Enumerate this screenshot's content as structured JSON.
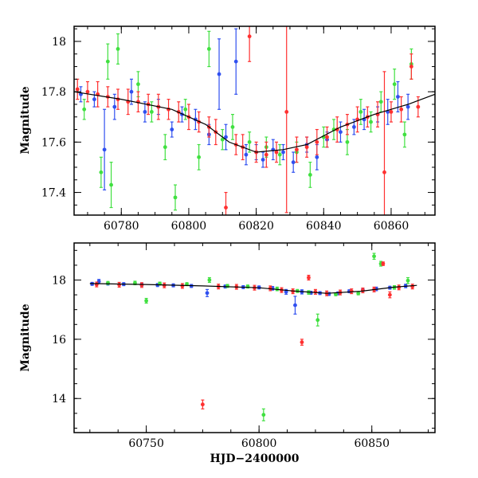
{
  "chart_data": [
    {
      "type": "scatter",
      "title": "",
      "xlabel": "",
      "ylabel": "Magnitude",
      "xlim": [
        60766,
        60873
      ],
      "ylim": [
        18.06,
        17.31
      ],
      "y_inverted": true,
      "grid": false,
      "x_ticks": [
        60780,
        60800,
        60820,
        60840,
        60860
      ],
      "x_tick_labels": [
        "60780",
        "60800",
        "60820",
        "60840",
        "60860"
      ],
      "y_ticks": [
        17.4,
        17.6,
        17.8,
        18.0
      ],
      "y_tick_labels": [
        "17.4",
        "17.6",
        "17.8",
        "18"
      ],
      "trend_line": {
        "color": "#000000",
        "x": [
          60766,
          60780,
          60795,
          60805,
          60812,
          60820,
          60828,
          60835,
          60845,
          60855,
          60865,
          60873
        ],
        "y": [
          17.8,
          17.77,
          17.73,
          17.67,
          17.6,
          17.56,
          17.57,
          17.59,
          17.66,
          17.71,
          17.75,
          17.79
        ]
      },
      "series": [
        {
          "color": "#3050f0",
          "x": [
            60768,
            60772,
            60775,
            60778,
            60783,
            60787,
            60791,
            60795,
            60798,
            60802,
            60806,
            60809,
            60811,
            60814,
            60817,
            60820,
            60822,
            60825,
            60828,
            60831,
            60835,
            60838,
            60841,
            60845,
            60849,
            60852,
            60856,
            60859,
            60862,
            60865
          ],
          "y": [
            17.79,
            17.77,
            17.57,
            17.74,
            17.8,
            17.72,
            17.74,
            17.65,
            17.71,
            17.69,
            17.63,
            17.87,
            17.62,
            17.92,
            17.55,
            17.56,
            17.53,
            17.57,
            17.56,
            17.52,
            17.59,
            17.54,
            17.61,
            17.64,
            17.66,
            17.69,
            17.71,
            17.72,
            17.78,
            17.74
          ],
          "err": [
            0.03,
            0.03,
            0.16,
            0.05,
            0.05,
            0.04,
            0.03,
            0.03,
            0.03,
            0.04,
            0.04,
            0.14,
            0.05,
            0.13,
            0.04,
            0.03,
            0.03,
            0.04,
            0.03,
            0.04,
            0.03,
            0.05,
            0.03,
            0.04,
            0.03,
            0.04,
            0.03,
            0.05,
            0.06,
            0.05
          ]
        },
        {
          "color": "#40e040",
          "x": [
            60769,
            60774,
            60776,
            60777,
            60779,
            60785,
            60789,
            60793,
            60796,
            60799,
            60803,
            60806,
            60810,
            60813,
            60818,
            60823,
            60827,
            60832,
            60836,
            60840,
            60843,
            60847,
            60851,
            60854,
            60857,
            60861,
            60864,
            60866
          ],
          "y": [
            17.73,
            17.48,
            17.92,
            17.43,
            17.97,
            17.83,
            17.72,
            17.58,
            17.38,
            17.73,
            17.54,
            17.97,
            17.61,
            17.66,
            17.6,
            17.58,
            17.55,
            17.56,
            17.47,
            17.62,
            17.65,
            17.6,
            17.72,
            17.68,
            17.76,
            17.83,
            17.63,
            17.91
          ],
          "err": [
            0.04,
            0.06,
            0.07,
            0.09,
            0.06,
            0.05,
            0.04,
            0.05,
            0.05,
            0.04,
            0.05,
            0.07,
            0.04,
            0.05,
            0.04,
            0.04,
            0.04,
            0.04,
            0.05,
            0.04,
            0.04,
            0.05,
            0.05,
            0.04,
            0.04,
            0.06,
            0.05,
            0.06
          ]
        },
        {
          "color": "#ff3030",
          "x": [
            60767,
            60770,
            60773,
            60776,
            60779,
            60782,
            60785,
            60788,
            60791,
            60794,
            60797,
            60800,
            60803,
            60806,
            60808,
            60811,
            60814,
            60816,
            60818,
            60820,
            60823,
            60826,
            60829,
            60832,
            60835,
            60838,
            60841,
            60844,
            60847,
            60850,
            60853,
            60856,
            60858,
            60860,
            60863,
            60866,
            60868
          ],
          "y": [
            17.81,
            17.8,
            17.79,
            17.78,
            17.77,
            17.76,
            17.76,
            17.75,
            17.74,
            17.73,
            17.72,
            17.7,
            17.68,
            17.66,
            17.64,
            17.34,
            17.59,
            17.58,
            18.02,
            17.56,
            17.55,
            17.56,
            17.72,
            17.57,
            17.58,
            17.6,
            17.62,
            17.65,
            17.67,
            17.69,
            17.7,
            17.71,
            17.48,
            17.72,
            17.73,
            17.9,
            17.74
          ],
          "err": [
            0.04,
            0.04,
            0.05,
            0.04,
            0.04,
            0.05,
            0.04,
            0.04,
            0.05,
            0.04,
            0.04,
            0.05,
            0.04,
            0.04,
            0.05,
            0.06,
            0.04,
            0.05,
            0.1,
            0.04,
            0.05,
            0.04,
            0.4,
            0.05,
            0.04,
            0.05,
            0.04,
            0.05,
            0.04,
            0.05,
            0.04,
            0.05,
            0.4,
            0.04,
            0.05,
            0.05,
            0.04
          ]
        }
      ]
    },
    {
      "type": "scatter",
      "title": "",
      "xlabel": "HJD−2400000",
      "ylabel": "Magnitude",
      "xlim": [
        60718,
        60878
      ],
      "ylim": [
        19.25,
        12.85
      ],
      "y_inverted": true,
      "grid": false,
      "x_ticks": [
        60750,
        60800,
        60850
      ],
      "x_tick_labels": [
        "60750",
        "60800",
        "60850"
      ],
      "y_ticks": [
        14,
        16,
        18
      ],
      "y_tick_labels": [
        "14",
        "16",
        "18"
      ],
      "trend_line": {
        "color": "#000000",
        "x": [
          60725,
          60750,
          60775,
          60800,
          60815,
          60830,
          60845,
          60860,
          60870
        ],
        "y": [
          17.88,
          17.85,
          17.8,
          17.74,
          17.63,
          17.55,
          17.62,
          17.76,
          17.82
        ]
      },
      "series": [
        {
          "color": "#3050f0",
          "x": [
            60726,
            60729,
            60733,
            60740,
            60748,
            60755,
            60762,
            60770,
            60777,
            60785,
            60793,
            60800,
            60806,
            60812,
            60816,
            60819,
            60823,
            60827,
            60831,
            60835,
            60840,
            60846,
            60852,
            60858,
            60865
          ],
          "y": [
            17.87,
            17.95,
            17.88,
            17.86,
            17.84,
            17.83,
            17.82,
            17.8,
            17.56,
            17.78,
            17.76,
            17.75,
            17.72,
            17.6,
            17.15,
            17.6,
            17.57,
            17.56,
            17.53,
            17.55,
            17.62,
            17.66,
            17.7,
            17.74,
            17.8
          ],
          "err": [
            0.05,
            0.07,
            0.05,
            0.05,
            0.05,
            0.05,
            0.05,
            0.05,
            0.12,
            0.05,
            0.05,
            0.05,
            0.06,
            0.08,
            0.3,
            0.07,
            0.05,
            0.05,
            0.05,
            0.05,
            0.05,
            0.05,
            0.06,
            0.05,
            0.06
          ]
        },
        {
          "color": "#40e040",
          "x": [
            60733,
            60745,
            60750,
            60756,
            60768,
            60778,
            60786,
            60795,
            60802,
            60808,
            60817,
            60822,
            60826,
            60834,
            60844,
            60851,
            60854,
            60860,
            60866
          ],
          "y": [
            17.9,
            17.9,
            17.3,
            17.88,
            17.86,
            18.0,
            17.8,
            17.78,
            13.45,
            17.7,
            17.63,
            17.58,
            16.65,
            17.52,
            17.55,
            18.8,
            18.55,
            17.75,
            17.98
          ],
          "err": [
            0.05,
            0.06,
            0.08,
            0.05,
            0.05,
            0.08,
            0.05,
            0.05,
            0.2,
            0.06,
            0.05,
            0.06,
            0.2,
            0.05,
            0.05,
            0.1,
            0.08,
            0.06,
            0.1
          ]
        },
        {
          "color": "#ff3030",
          "x": [
            60728,
            60738,
            60748,
            60758,
            60766,
            60775,
            60782,
            60790,
            60798,
            60805,
            60810,
            60815,
            60819,
            60822,
            60825,
            60830,
            60836,
            60841,
            60846,
            60851,
            60855,
            60858,
            60862,
            60868
          ],
          "y": [
            17.85,
            17.84,
            17.83,
            17.82,
            17.8,
            13.8,
            17.78,
            17.77,
            17.74,
            17.72,
            17.66,
            17.62,
            15.9,
            18.08,
            17.6,
            17.55,
            17.58,
            17.62,
            17.65,
            17.68,
            18.55,
            17.5,
            17.75,
            17.78
          ],
          "err": [
            0.08,
            0.08,
            0.08,
            0.08,
            0.08,
            0.15,
            0.08,
            0.08,
            0.08,
            0.08,
            0.08,
            0.08,
            0.1,
            0.08,
            0.08,
            0.08,
            0.08,
            0.08,
            0.08,
            0.08,
            0.06,
            0.1,
            0.08,
            0.08
          ]
        }
      ]
    }
  ]
}
